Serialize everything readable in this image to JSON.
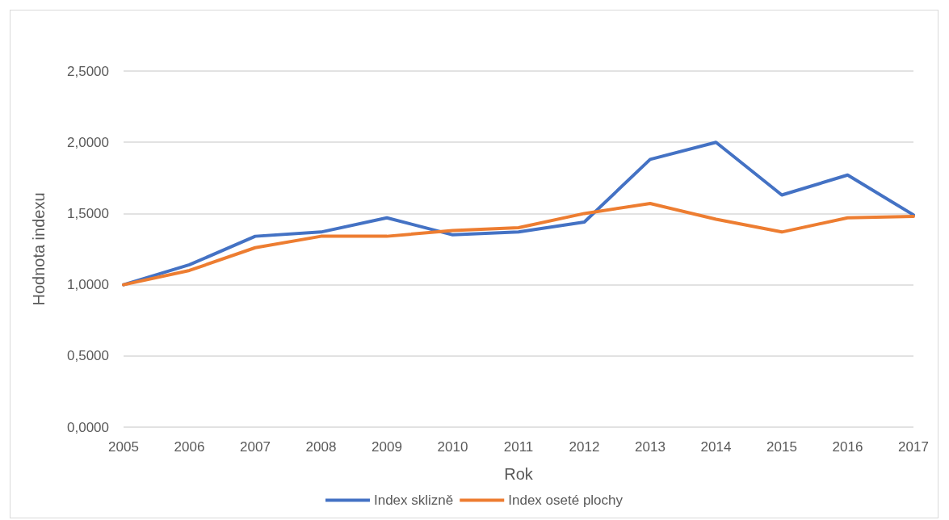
{
  "chart_data": {
    "type": "line",
    "xlabel": "Rok",
    "ylabel": "Hodnota indexu",
    "categories": [
      "2005",
      "2006",
      "2007",
      "2008",
      "2009",
      "2010",
      "2011",
      "2012",
      "2013",
      "2014",
      "2015",
      "2016",
      "2017"
    ],
    "series": [
      {
        "name": "Index sklizně",
        "color": "#4472c4",
        "values": [
          1.0,
          1.14,
          1.34,
          1.37,
          1.47,
          1.35,
          1.37,
          1.44,
          1.88,
          2.0,
          1.63,
          1.77,
          1.49
        ]
      },
      {
        "name": "Index oseté plochy",
        "color": "#ed7d31",
        "values": [
          1.0,
          1.1,
          1.26,
          1.34,
          1.34,
          1.38,
          1.4,
          1.5,
          1.57,
          1.46,
          1.37,
          1.47,
          1.48
        ]
      }
    ],
    "ylim": [
      0,
      2.5
    ],
    "yticks": [
      {
        "value": 0,
        "label": "0,0000"
      },
      {
        "value": 0.5,
        "label": "0,5000"
      },
      {
        "value": 1,
        "label": "1,0000"
      },
      {
        "value": 1.5,
        "label": "1,5000"
      },
      {
        "value": 2,
        "label": "2,0000"
      },
      {
        "value": 2.5,
        "label": "2,5000"
      }
    ],
    "grid": "y",
    "legend": "bottom",
    "marker": "none",
    "line_style": "solid"
  }
}
